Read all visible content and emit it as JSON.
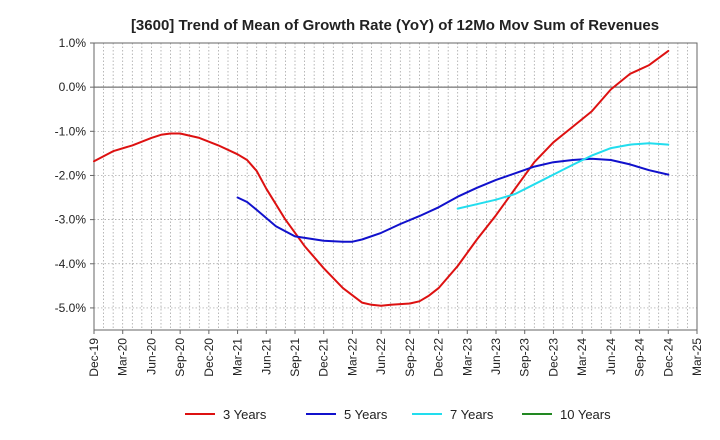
{
  "chart_data": {
    "type": "line",
    "title": "[3600]  Trend of Mean of Growth Rate (YoY) of 12Mo Mov Sum of Revenues",
    "xlabel": "",
    "ylabel": "",
    "ylim": [
      -5.5,
      1.0
    ],
    "yticks": [
      1.0,
      0.0,
      -1.0,
      -2.0,
      -3.0,
      -4.0,
      -5.0
    ],
    "ytick_labels": [
      "1.0%",
      "0.0%",
      "-1.0%",
      "-2.0%",
      "-3.0%",
      "-4.0%",
      "-5.0%"
    ],
    "xlim": [
      0,
      63
    ],
    "xticks": [
      0,
      3,
      6,
      9,
      12,
      15,
      18,
      21,
      24,
      27,
      30,
      33,
      36,
      39,
      42,
      45,
      48,
      51,
      54,
      57,
      60,
      63
    ],
    "xtick_labels": [
      "Dec-19",
      "Mar-20",
      "Jun-20",
      "Sep-20",
      "Dec-20",
      "Mar-21",
      "Jun-21",
      "Sep-21",
      "Dec-21",
      "Mar-22",
      "Jun-22",
      "Sep-22",
      "Dec-22",
      "Mar-23",
      "Jun-23",
      "Sep-23",
      "Dec-23",
      "Mar-24",
      "Jun-24",
      "Sep-24",
      "Dec-24",
      "Mar-25"
    ],
    "grid": true,
    "legend_position": "bottom",
    "series": [
      {
        "name": "3 Years",
        "color": "#dd1111",
        "x": [
          0,
          2,
          4,
          6,
          7,
          8,
          9,
          11,
          13,
          15,
          16,
          17,
          18,
          20,
          22,
          24,
          26,
          28,
          29,
          30,
          31,
          33,
          34,
          35,
          36,
          38,
          40,
          42,
          44,
          46,
          48,
          50,
          52,
          54,
          56,
          58,
          60
        ],
        "y": [
          -1.68,
          -1.45,
          -1.32,
          -1.15,
          -1.08,
          -1.05,
          -1.05,
          -1.15,
          -1.32,
          -1.52,
          -1.65,
          -1.9,
          -2.3,
          -3.0,
          -3.6,
          -4.1,
          -4.55,
          -4.88,
          -4.93,
          -4.95,
          -4.93,
          -4.9,
          -4.85,
          -4.72,
          -4.55,
          -4.05,
          -3.45,
          -2.9,
          -2.3,
          -1.7,
          -1.25,
          -0.9,
          -0.55,
          -0.05,
          0.3,
          0.5,
          0.82
        ]
      },
      {
        "name": "5 Years",
        "color": "#1111cc",
        "x": [
          15,
          16,
          17,
          19,
          21,
          24,
          26,
          27,
          28,
          30,
          32,
          34,
          36,
          38,
          40,
          42,
          44,
          46,
          48,
          50,
          52,
          54,
          56,
          58,
          60
        ],
        "y": [
          -2.5,
          -2.6,
          -2.78,
          -3.15,
          -3.38,
          -3.48,
          -3.5,
          -3.5,
          -3.45,
          -3.3,
          -3.1,
          -2.92,
          -2.72,
          -2.48,
          -2.28,
          -2.1,
          -1.95,
          -1.8,
          -1.7,
          -1.65,
          -1.62,
          -1.65,
          -1.75,
          -1.88,
          -1.98
        ]
      },
      {
        "name": "7 Years",
        "color": "#22ddee",
        "x": [
          38,
          40,
          42,
          44,
          46,
          48,
          50,
          52,
          54,
          56,
          58,
          60
        ],
        "y": [
          -2.75,
          -2.65,
          -2.55,
          -2.42,
          -2.2,
          -1.98,
          -1.76,
          -1.55,
          -1.38,
          -1.3,
          -1.27,
          -1.3
        ]
      },
      {
        "name": "10 Years",
        "color": "#228822",
        "x": [],
        "y": []
      }
    ]
  }
}
